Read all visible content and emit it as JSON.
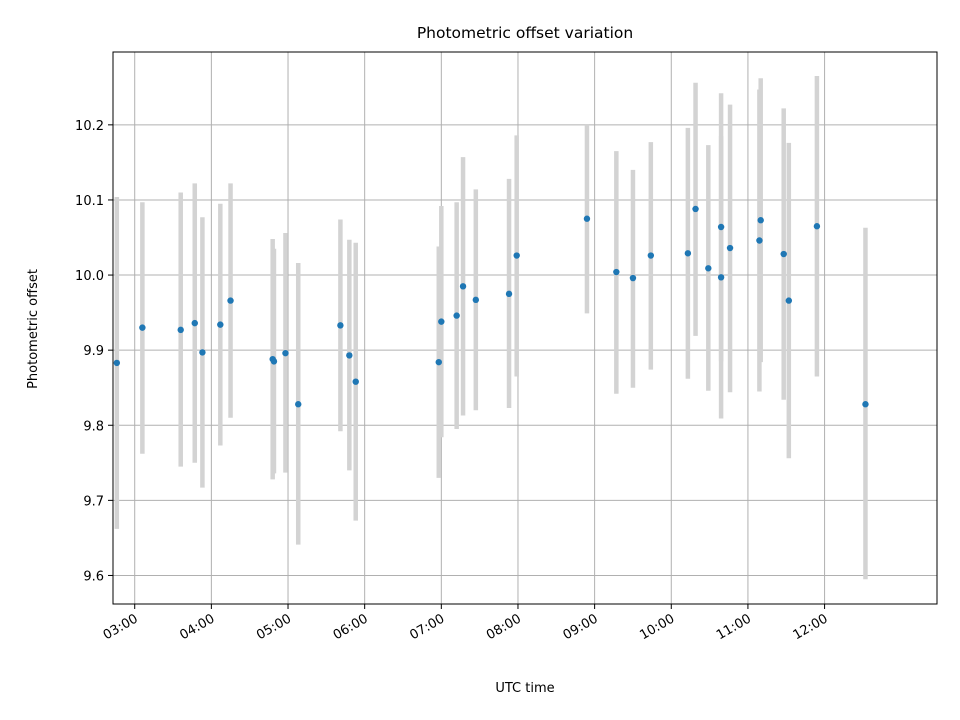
{
  "chart_data": {
    "type": "scatter",
    "title": "Photometric offset variation",
    "xlabel": "UTC time",
    "ylabel": "Photometric offset",
    "x_tick_labels": [
      "03:00",
      "04:00",
      "05:00",
      "06:00",
      "07:00",
      "08:00",
      "09:00",
      "10:00",
      "11:00",
      "12:00"
    ],
    "y_tick_labels": [
      "9.6",
      "9.7",
      "9.8",
      "9.9",
      "10.0",
      "10.1",
      "10.2"
    ],
    "xlim": [
      "02:43",
      "13:28"
    ],
    "ylim": [
      9.562,
      10.297
    ],
    "grid": true,
    "point_color": "#1f77b4",
    "errorbar_color": "#d3d3d3",
    "points": [
      {
        "x": "02:46",
        "y": 9.883,
        "err_low": 9.662,
        "err_high": 10.104
      },
      {
        "x": "03:06",
        "y": 9.93,
        "err_low": 9.762,
        "err_high": 10.097
      },
      {
        "x": "03:36",
        "y": 9.927,
        "err_low": 9.745,
        "err_high": 10.11
      },
      {
        "x": "03:47",
        "y": 9.936,
        "err_low": 9.75,
        "err_high": 10.122
      },
      {
        "x": "03:53",
        "y": 9.897,
        "err_low": 9.717,
        "err_high": 10.077
      },
      {
        "x": "04:07",
        "y": 9.934,
        "err_low": 9.773,
        "err_high": 10.095
      },
      {
        "x": "04:15",
        "y": 9.966,
        "err_low": 9.81,
        "err_high": 10.122
      },
      {
        "x": "04:48",
        "y": 9.888,
        "err_low": 9.728,
        "err_high": 10.048
      },
      {
        "x": "04:49",
        "y": 9.885,
        "err_low": 9.736,
        "err_high": 10.035
      },
      {
        "x": "04:58",
        "y": 9.896,
        "err_low": 9.737,
        "err_high": 10.056
      },
      {
        "x": "05:08",
        "y": 9.828,
        "err_low": 9.641,
        "err_high": 10.016
      },
      {
        "x": "05:41",
        "y": 9.933,
        "err_low": 9.792,
        "err_high": 10.074
      },
      {
        "x": "05:48",
        "y": 9.893,
        "err_low": 9.74,
        "err_high": 10.047
      },
      {
        "x": "05:53",
        "y": 9.858,
        "err_low": 9.673,
        "err_high": 10.043
      },
      {
        "x": "06:58",
        "y": 9.884,
        "err_low": 9.73,
        "err_high": 10.038
      },
      {
        "x": "07:00",
        "y": 9.938,
        "err_low": 9.784,
        "err_high": 10.092
      },
      {
        "x": "07:12",
        "y": 9.946,
        "err_low": 9.795,
        "err_high": 10.097
      },
      {
        "x": "07:17",
        "y": 9.985,
        "err_low": 9.813,
        "err_high": 10.157
      },
      {
        "x": "07:27",
        "y": 9.967,
        "err_low": 9.82,
        "err_high": 10.114
      },
      {
        "x": "07:53",
        "y": 9.975,
        "err_low": 9.823,
        "err_high": 10.128
      },
      {
        "x": "07:59",
        "y": 10.026,
        "err_low": 9.865,
        "err_high": 10.186
      },
      {
        "x": "08:54",
        "y": 10.075,
        "err_low": 9.949,
        "err_high": 10.2
      },
      {
        "x": "09:17",
        "y": 10.004,
        "err_low": 9.842,
        "err_high": 10.165
      },
      {
        "x": "09:30",
        "y": 9.996,
        "err_low": 9.85,
        "err_high": 10.14
      },
      {
        "x": "09:44",
        "y": 10.026,
        "err_low": 9.874,
        "err_high": 10.177
      },
      {
        "x": "10:13",
        "y": 10.029,
        "err_low": 9.862,
        "err_high": 10.196
      },
      {
        "x": "10:19",
        "y": 10.088,
        "err_low": 9.919,
        "err_high": 10.256
      },
      {
        "x": "10:29",
        "y": 10.009,
        "err_low": 9.846,
        "err_high": 10.173
      },
      {
        "x": "10:39",
        "y": 10.064,
        "err_low": 9.885,
        "err_high": 10.242
      },
      {
        "x": "10:39",
        "y": 9.997,
        "err_low": 9.809,
        "err_high": 10.185
      },
      {
        "x": "10:46",
        "y": 10.036,
        "err_low": 9.844,
        "err_high": 10.227
      },
      {
        "x": "11:09",
        "y": 10.046,
        "err_low": 9.845,
        "err_high": 10.247
      },
      {
        "x": "11:10",
        "y": 10.073,
        "err_low": 9.884,
        "err_high": 10.262
      },
      {
        "x": "11:28",
        "y": 10.028,
        "err_low": 9.834,
        "err_high": 10.222
      },
      {
        "x": "11:32",
        "y": 9.966,
        "err_low": 9.756,
        "err_high": 10.176
      },
      {
        "x": "11:54",
        "y": 10.065,
        "err_low": 9.865,
        "err_high": 10.265
      },
      {
        "x": "12:32",
        "y": 9.828,
        "err_low": 9.595,
        "err_high": 10.063
      }
    ]
  }
}
